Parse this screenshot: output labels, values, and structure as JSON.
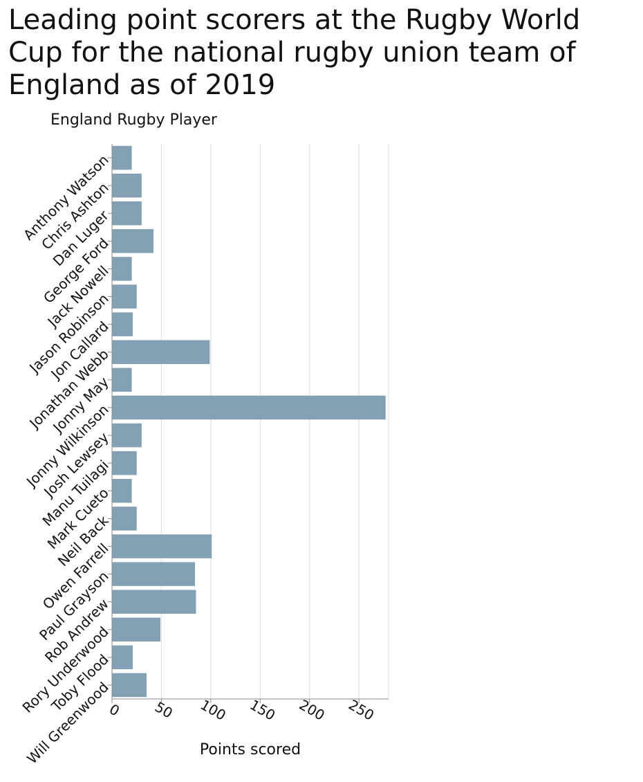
{
  "chart_data": {
    "type": "bar",
    "orientation": "horizontal",
    "title": "Leading point scorers at the Rugby World Cup for the national rugby union team of England as of 2019",
    "ylabel": "England Rugby Player",
    "xlabel": "Points scored",
    "categories": [
      "Anthony Watson",
      "Chris Ashton",
      "Dan Luger",
      "George Ford",
      "Jack Nowell",
      "Jason Robinson",
      "Jon Callard",
      "Jonathan Webb",
      "Jonny May",
      "Jonny Wilkinson",
      "Josh Lewsey",
      "Manu Tuilagi",
      "Mark Cueto",
      "Neil Back",
      "Owen Farrell",
      "Paul Grayson",
      "Rob Andrew",
      "Rory Underwood",
      "Toby Flood",
      "Will Greenwood"
    ],
    "values": [
      20,
      30,
      30,
      42,
      20,
      25,
      21,
      99,
      20,
      277,
      30,
      25,
      20,
      25,
      101,
      84,
      85,
      49,
      21,
      35
    ],
    "xlim": [
      0,
      280
    ],
    "xticks": [
      0,
      50,
      100,
      150,
      200,
      250
    ],
    "grid": true,
    "bar_color": "#84a0b4"
  }
}
